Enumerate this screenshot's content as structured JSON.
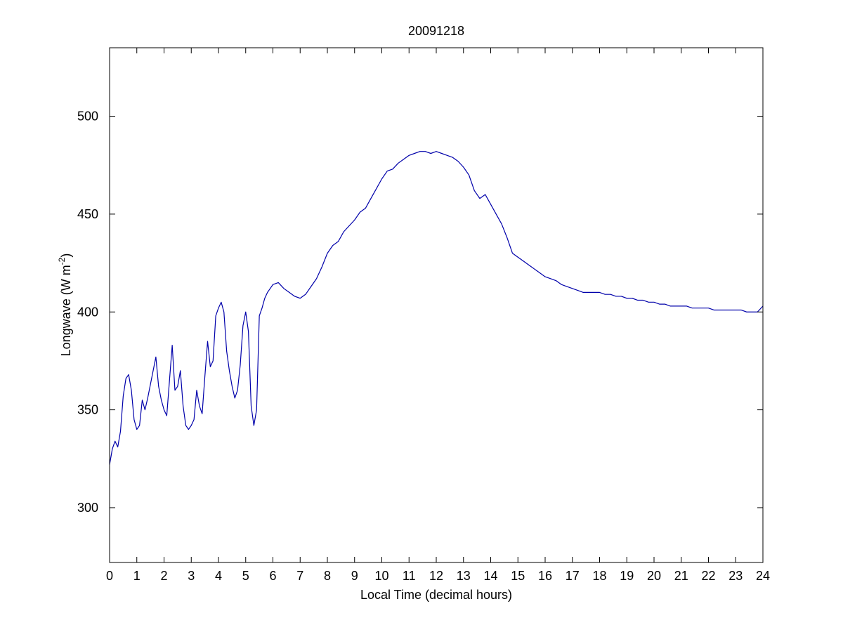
{
  "chart_data": {
    "type": "line",
    "title": "20091218",
    "xlabel": "Local Time (decimal hours)",
    "ylabel_main": "Longwave (W m",
    "ylabel_sup": "-2",
    "ylabel_close": ")",
    "xlim": [
      0,
      24
    ],
    "ylim": [
      272,
      535
    ],
    "xticks": [
      0,
      1,
      2,
      3,
      4,
      5,
      6,
      7,
      8,
      9,
      10,
      11,
      12,
      13,
      14,
      15,
      16,
      17,
      18,
      19,
      20,
      21,
      22,
      23,
      24
    ],
    "xtick_labels": [
      "0",
      "1",
      "2",
      "3",
      "4",
      "5",
      "6",
      "7",
      "8",
      "9",
      "10",
      "11",
      "12",
      "13",
      "14",
      "15",
      "16",
      "17",
      "18",
      "19",
      "20",
      "21",
      "22",
      "23",
      "24"
    ],
    "yticks": [
      300,
      350,
      400,
      450,
      500
    ],
    "ytick_labels": [
      "300",
      "350",
      "400",
      "450",
      "500"
    ],
    "grid": false,
    "line_color": "#0000aa",
    "series": [
      {
        "x": [
          0.0,
          0.1,
          0.2,
          0.3,
          0.4,
          0.5,
          0.6,
          0.7,
          0.8,
          0.9,
          1.0,
          1.1,
          1.2,
          1.3,
          1.4,
          1.5,
          1.6,
          1.7,
          1.8,
          1.9,
          2.0,
          2.1,
          2.2,
          2.3,
          2.4,
          2.5,
          2.6,
          2.7,
          2.8,
          2.9,
          3.0,
          3.1,
          3.2,
          3.3,
          3.4,
          3.5,
          3.6,
          3.7,
          3.8,
          3.9,
          4.0,
          4.1,
          4.2,
          4.3,
          4.4,
          4.5,
          4.6,
          4.7,
          4.8,
          4.9,
          5.0,
          5.1,
          5.2,
          5.3,
          5.4,
          5.5,
          5.6,
          5.7,
          5.8,
          5.9,
          6.0,
          6.2,
          6.4,
          6.6,
          6.8,
          7.0,
          7.2,
          7.4,
          7.6,
          7.8,
          8.0,
          8.2,
          8.4,
          8.6,
          8.8,
          9.0,
          9.2,
          9.4,
          9.6,
          9.8,
          10.0,
          10.2,
          10.4,
          10.6,
          10.8,
          11.0,
          11.2,
          11.4,
          11.6,
          11.8,
          12.0,
          12.2,
          12.4,
          12.6,
          12.8,
          13.0,
          13.2,
          13.4,
          13.6,
          13.8,
          14.0,
          14.2,
          14.4,
          14.6,
          14.8,
          15.0,
          15.2,
          15.4,
          15.6,
          15.8,
          16.0,
          16.2,
          16.4,
          16.6,
          16.8,
          17.0,
          17.2,
          17.4,
          17.6,
          17.8,
          18.0,
          18.2,
          18.4,
          18.6,
          18.8,
          19.0,
          19.2,
          19.4,
          19.6,
          19.8,
          20.0,
          20.2,
          20.4,
          20.6,
          20.8,
          21.0,
          21.2,
          21.4,
          21.6,
          21.8,
          22.0,
          22.2,
          22.4,
          22.6,
          22.8,
          23.0,
          23.2,
          23.4,
          23.6,
          23.8,
          24.0
        ],
        "y": [
          322,
          330,
          334,
          331,
          339,
          357,
          366,
          368,
          360,
          345,
          340,
          342,
          355,
          350,
          356,
          363,
          370,
          377,
          362,
          355,
          350,
          347,
          365,
          383,
          360,
          362,
          370,
          352,
          342,
          340,
          342,
          345,
          360,
          352,
          348,
          367,
          385,
          372,
          375,
          398,
          402,
          405,
          400,
          380,
          370,
          362,
          356,
          360,
          373,
          393,
          400,
          390,
          352,
          342,
          350,
          398,
          402,
          407,
          410,
          412,
          414,
          415,
          412,
          410,
          408,
          407,
          409,
          413,
          417,
          423,
          430,
          434,
          436,
          441,
          444,
          447,
          451,
          453,
          458,
          463,
          468,
          472,
          473,
          476,
          478,
          480,
          481,
          482,
          482,
          481,
          482,
          481,
          480,
          479,
          477,
          474,
          470,
          462,
          458,
          460,
          455,
          450,
          445,
          438,
          430,
          428,
          426,
          424,
          422,
          420,
          418,
          417,
          416,
          414,
          413,
          412,
          411,
          410,
          410,
          410,
          410,
          409,
          409,
          408,
          408,
          407,
          407,
          406,
          406,
          405,
          405,
          404,
          404,
          403,
          403,
          403,
          403,
          402,
          402,
          402,
          402,
          401,
          401,
          401,
          401,
          401,
          401,
          400,
          400,
          400,
          403
        ]
      }
    ]
  }
}
